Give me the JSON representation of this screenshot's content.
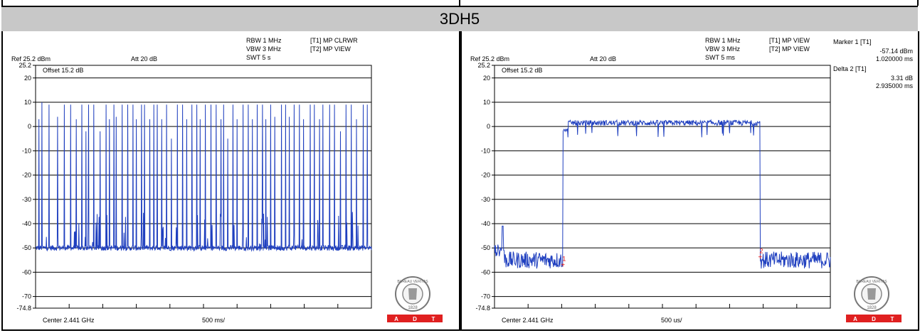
{
  "title": "3DH5",
  "colors": {
    "trace": "#1f3fbf",
    "grid": "#000000",
    "marker": "#e01010",
    "adt": "#e02020"
  },
  "panels": [
    {
      "id": "left",
      "ref": "Ref 25.2 dBm",
      "att": "Att  20 dB",
      "rbw": "RBW 1 MHz",
      "vbw": "VBW 3 MHz",
      "swt": "SWT 5 s",
      "t1": "[T1] MP CLRWR",
      "t2": "[T2] MP VIEW",
      "offset": "Offset 15.2 dB",
      "center": "Center 2.441 GHz",
      "span": "500 ms/",
      "marker_info": []
    },
    {
      "id": "right",
      "ref": "Ref 25.2 dBm",
      "att": "Att  20 dB",
      "rbw": "RBW 1 MHz",
      "vbw": "VBW 3 MHz",
      "swt": "SWT 5 ms",
      "t1": "[T1] MP VIEW",
      "t2": "[T2] MP VIEW",
      "offset": "Offset 15.2 dB",
      "center": "Center 2.441 GHz",
      "span": "500 us/",
      "marker_info": [
        "Marker 1 [T1]",
        "-57.14 dBm",
        "1.020000 ms",
        "Delta 2 [T1]",
        "3.31 dB",
        "2.935000 ms"
      ]
    }
  ],
  "logo": {
    "seal_text": "BUREAU VERITAS",
    "year": "1828",
    "adt": [
      "A",
      "D",
      "T"
    ]
  },
  "chart_data": [
    {
      "type": "line",
      "title": "",
      "ylim": [
        -74.8,
        25.2
      ],
      "y_ticks": [
        "25.2",
        "20",
        "10",
        "0",
        "-10",
        "-20",
        "-30",
        "-40",
        "-50",
        "-60",
        "-70",
        "-74.8"
      ],
      "x_range_ms": [
        0,
        5000
      ],
      "baseline_dbm": -50,
      "description_series": "time-domain hopping bursts",
      "burst_times_ms": [
        50,
        95,
        200,
        330,
        430,
        520,
        605,
        690,
        750,
        790,
        865,
        960,
        1050,
        1100,
        1165,
        1200,
        1290,
        1370,
        1450,
        1500,
        1575,
        1620,
        1700,
        1760,
        1810,
        1880,
        1950,
        2020,
        2110,
        2190,
        2250,
        2330,
        2400,
        2450,
        2530,
        2610,
        2690,
        2760,
        2800,
        2860,
        2940,
        3000,
        3090,
        3165,
        3230,
        3300,
        3380,
        3430,
        3500,
        3560,
        3660,
        3720,
        3780,
        3850,
        3930,
        3990,
        4090,
        4150,
        4230,
        4280,
        4380,
        4450,
        4540,
        4620,
        4700,
        4780,
        4880,
        4940
      ],
      "burst_peaks_dbm": [
        3,
        10,
        9,
        4,
        9,
        9,
        3,
        9,
        -2,
        9,
        9,
        -2,
        9,
        3,
        9,
        4,
        9,
        9,
        9,
        3,
        9,
        9,
        3,
        9,
        9,
        3,
        9,
        -5,
        9,
        9,
        3,
        9,
        9,
        3,
        9,
        9,
        9,
        3,
        9,
        -5,
        9,
        3,
        9,
        9,
        3,
        9,
        9,
        3,
        9,
        4,
        9,
        9,
        4,
        9,
        9,
        3,
        9,
        9,
        3,
        9,
        9,
        9,
        -2,
        9,
        9,
        3,
        9,
        9
      ]
    },
    {
      "type": "line",
      "title": "",
      "ylim": [
        -74.8,
        25.2
      ],
      "y_ticks": [
        "25.2",
        "20",
        "10",
        "0",
        "-10",
        "-20",
        "-30",
        "-40",
        "-50",
        "-60",
        "-70",
        "-74.8"
      ],
      "x_range_ms": [
        0,
        5
      ],
      "noise_floor_dbm": -55,
      "pulse_start_ms": 1.02,
      "pulse_end_ms": 3.955,
      "pulse_level_dbm": 1.5,
      "markers": [
        {
          "label": "1",
          "x_ms": 1.02,
          "y_dbm": -57.14
        },
        {
          "label": "2",
          "x_ms": 3.955,
          "y_dbm": -53.83
        }
      ]
    }
  ]
}
